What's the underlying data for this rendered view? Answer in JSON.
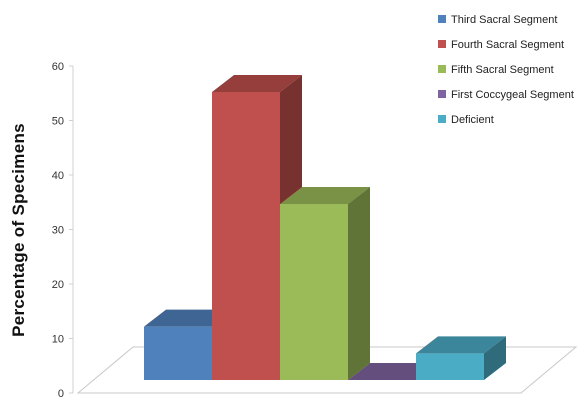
{
  "chart_data": {
    "type": "bar",
    "title": "",
    "xlabel": "",
    "ylabel": "Percentage of Specimens",
    "ylim": [
      0,
      60
    ],
    "yticks": [
      0,
      10,
      20,
      30,
      40,
      50,
      60
    ],
    "grid": false,
    "three_d": true,
    "legend_position": "top-right",
    "categories": [
      "Third Sacral Segment",
      "Fourth Sacral Segment",
      "Fifth Sacral Segment",
      "First Coccygeal Segment",
      "Deficient"
    ],
    "values": [
      10,
      54,
      33,
      0,
      5
    ],
    "colors": [
      "#4F81BD",
      "#C0504D",
      "#9BBB59",
      "#8064A2",
      "#4BACC6"
    ]
  }
}
